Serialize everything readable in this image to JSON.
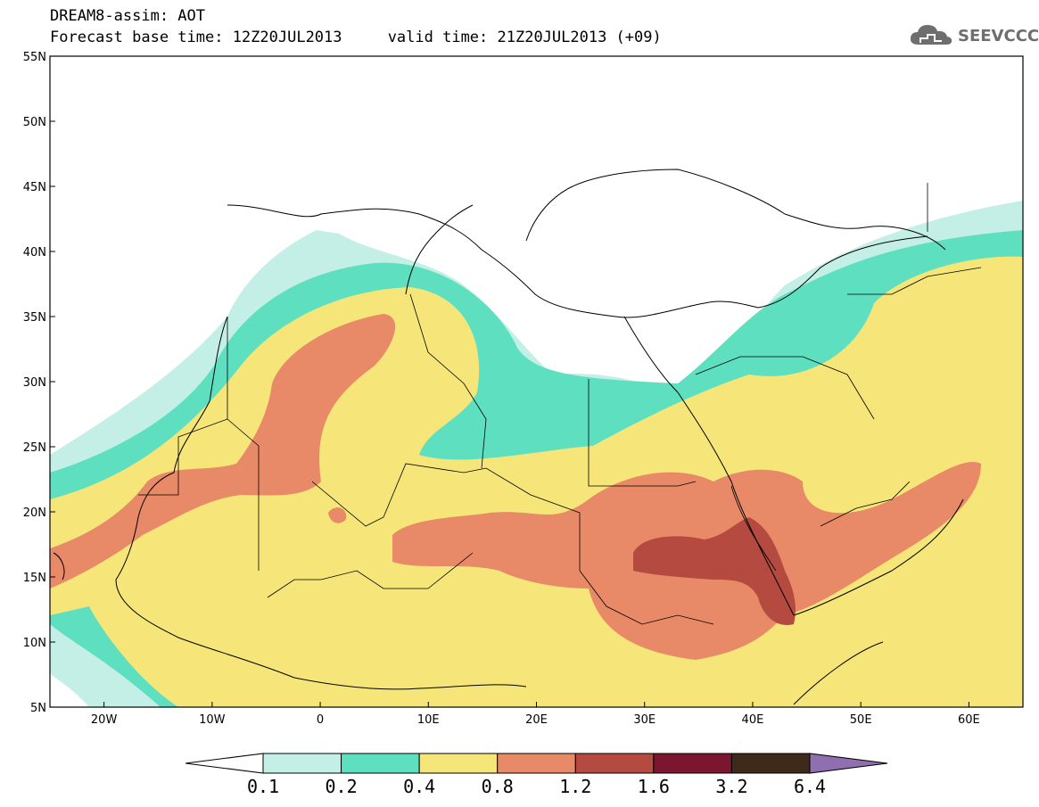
{
  "header": {
    "title_line1": "DREAM8-assim: AOT",
    "title_line2": "Forecast base time: 12Z20JUL2013     valid time: 21Z20JUL2013 (+09)"
  },
  "logo": {
    "text": "SEEVCCC",
    "icon": "cloud-icon"
  },
  "map": {
    "lat_labels": [
      "55N",
      "50N",
      "45N",
      "40N",
      "35N",
      "30N",
      "25N",
      "20N",
      "15N",
      "10N",
      "5N"
    ],
    "lon_labels": [
      "20W",
      "10W",
      "0",
      "10E",
      "20E",
      "30E",
      "40E",
      "50E",
      "60E"
    ],
    "lat_range": [
      5,
      55
    ],
    "lon_range": [
      -25,
      65
    ]
  },
  "colorbar": {
    "ticks": [
      "0.1",
      "0.2",
      "0.4",
      "0.8",
      "1.2",
      "1.6",
      "3.2",
      "6.4"
    ],
    "colors": [
      "#ffffff",
      "#c4efe6",
      "#5ee0c0",
      "#f6e67a",
      "#e88a67",
      "#b44a40",
      "#7c1630",
      "#3e2a1a",
      "#8f6fb0"
    ]
  },
  "fields": {
    "aot_levels": [
      "0.1",
      "0.2",
      "0.4",
      "0.8",
      "1.2",
      "1.6"
    ]
  }
}
